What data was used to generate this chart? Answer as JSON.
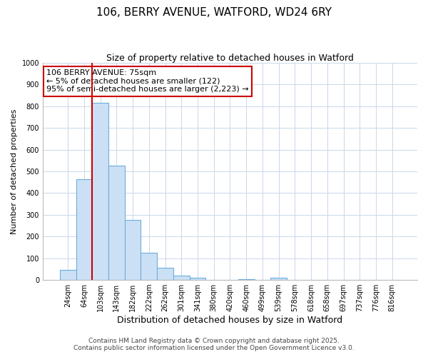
{
  "title": "106, BERRY AVENUE, WATFORD, WD24 6RY",
  "subtitle": "Size of property relative to detached houses in Watford",
  "xlabel": "Distribution of detached houses by size in Watford",
  "ylabel": "Number of detached properties",
  "bar_labels": [
    "24sqm",
    "64sqm",
    "103sqm",
    "143sqm",
    "182sqm",
    "222sqm",
    "262sqm",
    "301sqm",
    "341sqm",
    "380sqm",
    "420sqm",
    "460sqm",
    "499sqm",
    "539sqm",
    "578sqm",
    "618sqm",
    "658sqm",
    "697sqm",
    "737sqm",
    "776sqm",
    "816sqm"
  ],
  "bar_values": [
    45,
    465,
    815,
    525,
    275,
    125,
    55,
    20,
    10,
    0,
    0,
    5,
    0,
    10,
    0,
    0,
    0,
    0,
    0,
    0,
    0
  ],
  "bar_color": "#cce0f5",
  "bar_edge_color": "#6aaee0",
  "background_color": "#ffffff",
  "grid_color": "#c8d8ea",
  "vline_color": "#cc0000",
  "annotation_text": "106 BERRY AVENUE: 75sqm\n← 5% of detached houses are smaller (122)\n95% of semi-detached houses are larger (2,223) →",
  "annotation_box_edge_color": "#cc0000",
  "ylim": [
    0,
    1000
  ],
  "yticks": [
    0,
    100,
    200,
    300,
    400,
    500,
    600,
    700,
    800,
    900,
    1000
  ],
  "footer_line1": "Contains HM Land Registry data © Crown copyright and database right 2025.",
  "footer_line2": "Contains public sector information licensed under the Open Government Licence v3.0.",
  "title_fontsize": 11,
  "subtitle_fontsize": 9,
  "xlabel_fontsize": 9,
  "ylabel_fontsize": 8,
  "tick_fontsize": 7,
  "footer_fontsize": 6.5,
  "annotation_fontsize": 8
}
